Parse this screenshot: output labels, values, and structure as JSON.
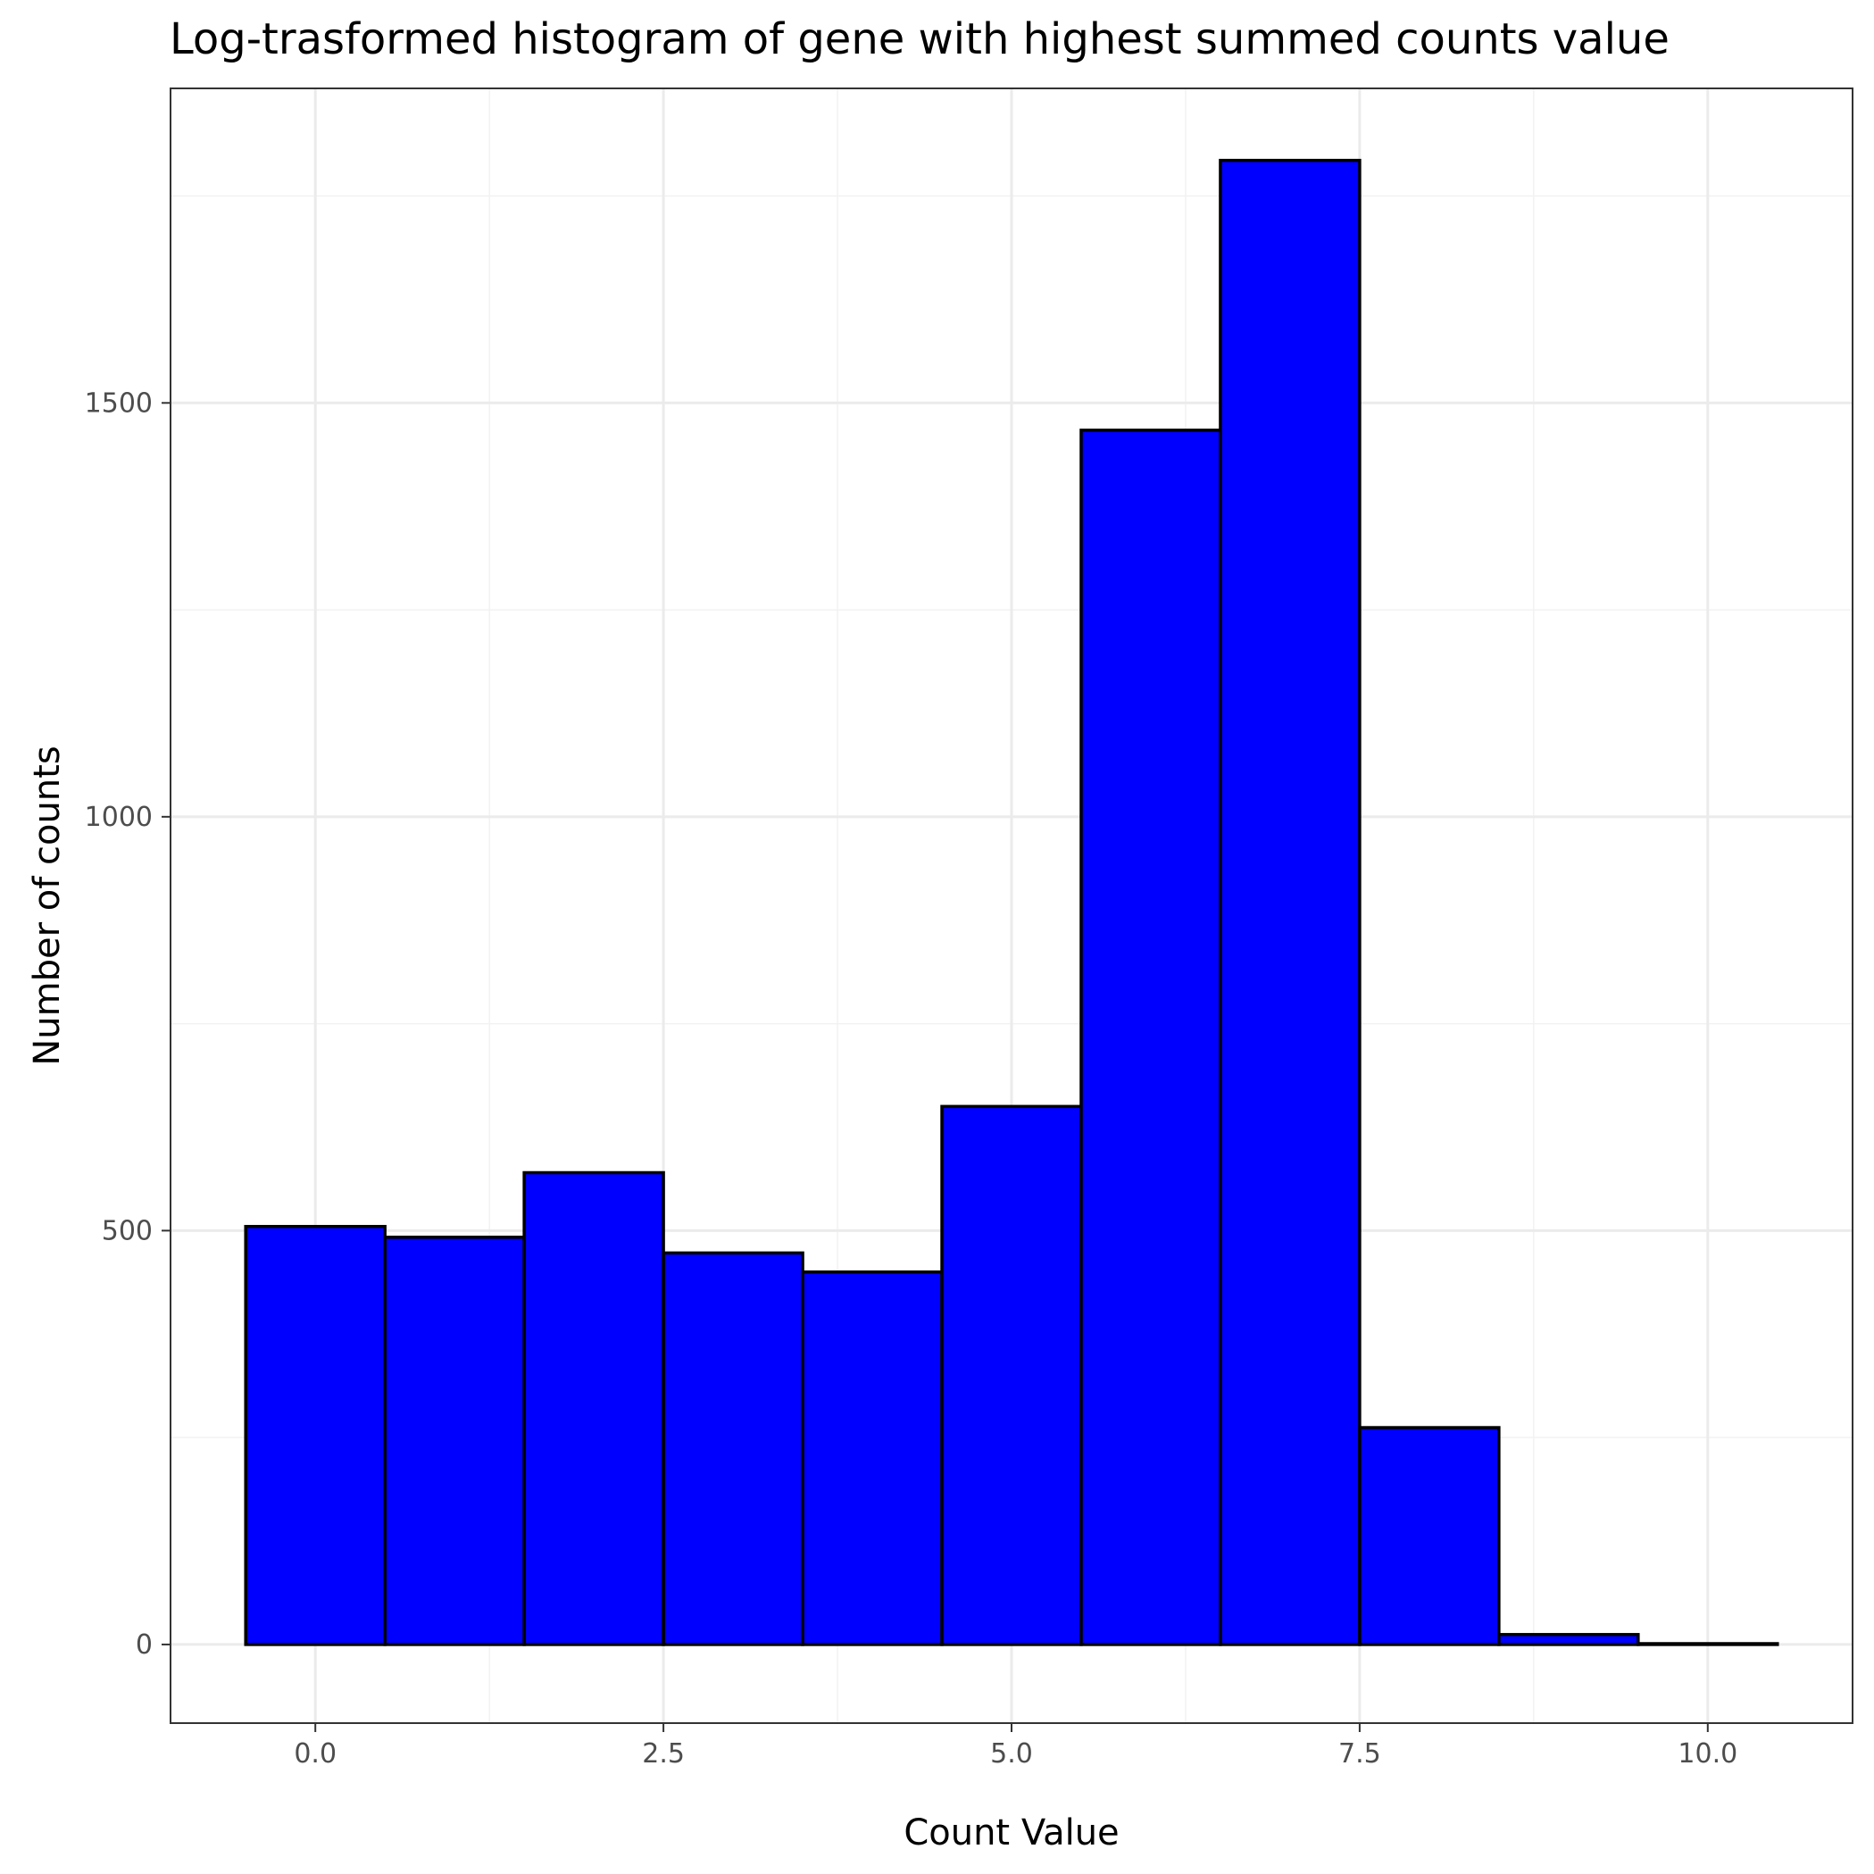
{
  "chart_data": {
    "type": "bar",
    "title": "Log-trasformed histogram of gene with highest summed counts value",
    "xlabel": "Count Value",
    "ylabel": "Number of counts",
    "xlim": [
      -1.04,
      11.04
    ],
    "ylim": [
      -95,
      1880
    ],
    "x_ticks": [
      0.0,
      2.5,
      5.0,
      7.5,
      10.0
    ],
    "x_tick_labels": [
      "0.0",
      "2.5",
      "5.0",
      "7.5",
      "10.0"
    ],
    "x_minor": [
      1.25,
      3.75,
      6.25,
      8.75
    ],
    "y_ticks": [
      0,
      500,
      1000,
      1500
    ],
    "y_tick_labels": [
      "0",
      "500",
      "1000",
      "1500"
    ],
    "y_minor": [
      250,
      750,
      1250,
      1750
    ],
    "grid": true,
    "bins": [
      {
        "x_min": -0.5,
        "x_max": 0.5,
        "count": 505
      },
      {
        "x_min": 0.5,
        "x_max": 1.5,
        "count": 492
      },
      {
        "x_min": 1.5,
        "x_max": 2.5,
        "count": 570
      },
      {
        "x_min": 2.5,
        "x_max": 3.5,
        "count": 473
      },
      {
        "x_min": 3.5,
        "x_max": 4.5,
        "count": 450
      },
      {
        "x_min": 4.5,
        "x_max": 5.5,
        "count": 650
      },
      {
        "x_min": 5.5,
        "x_max": 6.5,
        "count": 1467
      },
      {
        "x_min": 6.5,
        "x_max": 7.5,
        "count": 1793
      },
      {
        "x_min": 7.5,
        "x_max": 8.5,
        "count": 262
      },
      {
        "x_min": 8.5,
        "x_max": 9.5,
        "count": 12
      },
      {
        "x_min": 9.5,
        "x_max": 10.5,
        "count": 1
      }
    ],
    "colors": {
      "bar_fill": "#0000ff",
      "bar_stroke": "#000000",
      "grid_major": "#ebebeb",
      "grid_minor": "#f2f2f2",
      "panel_border": "#333333"
    }
  }
}
